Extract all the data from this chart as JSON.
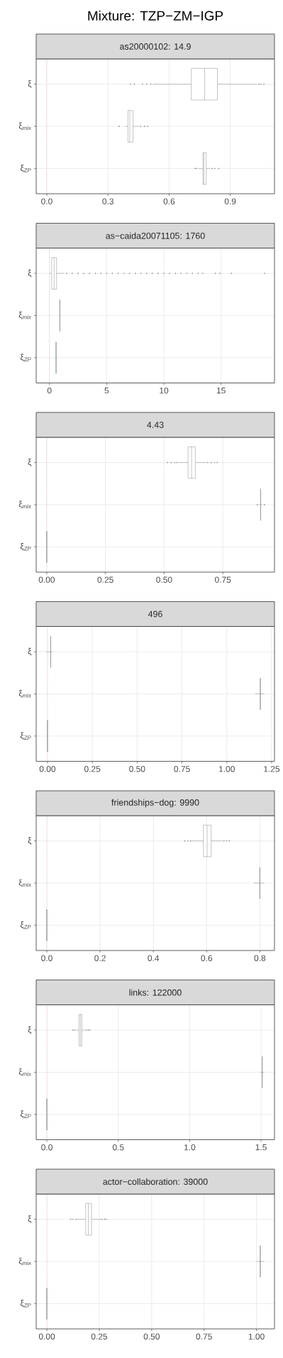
{
  "chart_data": [
    {
      "type": "box",
      "title": "Mixture: TZP−ZM−IGP",
      "subtitle": "as20000102: 14.9",
      "orientation": "horizontal",
      "categories": [
        "ξ",
        "ξ$_{mix}$",
        "ξ$_{ZP}$"
      ],
      "series": [
        {
          "color": "#8a8a8a",
          "boxes": [
            {
              "low": 0.52,
              "q1": 0.709,
              "median": 0.774,
              "q3": 0.837,
              "high": 1.03,
              "outliers": [
                0.41,
                0.43,
                0.47,
                0.49,
                0.51,
                1.04,
                1.05,
                1.065
              ]
            },
            {
              "low": 0.385,
              "q1": 0.398,
              "median": 0.407,
              "q3": 0.423,
              "high": 0.45,
              "outliers": [
                0.355,
                0.46,
                0.48,
                0.495
              ]
            },
            {
              "low": 0.745,
              "q1": 0.766,
              "median": 0.771,
              "q3": 0.782,
              "high": 0.8,
              "outliers": [
                0.727,
                0.735,
                0.81,
                0.825,
                0.843
              ]
            }
          ]
        }
      ],
      "xlim": [
        -0.052,
        1.117
      ],
      "xticks": [
        {
          "value": 0,
          "label": "0.0"
        },
        {
          "value": 0.3,
          "label": "0.3"
        },
        {
          "value": 0.6,
          "label": "0.6"
        },
        {
          "value": 0.9,
          "label": "0.9"
        }
      ],
      "grid": true,
      "ref_lines": [
        {
          "axis": "x",
          "value": 0,
          "color": "#e8677a",
          "line_style": "dotted"
        }
      ]
    },
    {
      "type": "box",
      "subtitle": "as−caida20071105: 1760",
      "orientation": "horizontal",
      "categories": [
        "ξ",
        "ξ$_{mix}$",
        "ξ$_{ZP}$"
      ],
      "series": [
        {
          "color": "#8a8a8a",
          "boxes": [
            {
              "low": 0.0,
              "q1": 0.19,
              "median": 0.41,
              "q3": 0.62,
              "high": 1.28,
              "outliers": [
                1.5,
                2,
                2.5,
                3,
                3.5,
                4,
                4.5,
                5,
                5.5,
                6,
                6.5,
                7,
                7.5,
                8,
                8.5,
                9,
                9.5,
                10,
                10.5,
                11,
                11.5,
                12,
                12.5,
                13,
                13.4,
                14.5,
                14.9,
                15.9,
                18.8
              ]
            },
            {
              "low": 0.88,
              "q1": 0.91,
              "median": 0.91,
              "q3": 0.91,
              "high": 0.94
            },
            {
              "low": 0.56,
              "q1": 0.58,
              "median": 0.58,
              "q3": 0.58,
              "high": 0.6
            }
          ]
        }
      ],
      "xlim": [
        -1.16,
        19.67
      ],
      "xticks": [
        0,
        5,
        10,
        15
      ],
      "grid": true,
      "ref_lines": [
        {
          "axis": "x",
          "value": 0,
          "color": "#e8677a",
          "line_style": "dotted"
        }
      ]
    },
    {
      "type": "box",
      "subtitle": "4.43",
      "orientation": "horizontal",
      "categories": [
        "ξ",
        "ξ$_{mix}$",
        "ξ$_{ZP}$"
      ],
      "series": [
        {
          "color": "#8a8a8a",
          "boxes": [
            {
              "low": 0.562,
              "q1": 0.602,
              "median": 0.617,
              "q3": 0.633,
              "high": 0.678,
              "outliers": [
                0.514,
                0.53,
                0.545,
                0.555,
                0.685,
                0.7,
                0.715,
                0.726
              ]
            },
            {
              "low": 0.905,
              "q1": 0.911,
              "median": 0.911,
              "q3": 0.911,
              "high": 0.918,
              "outliers": [
                0.897,
                0.927
              ]
            },
            {
              "low": 0,
              "q1": 0,
              "median": 0,
              "q3": 0,
              "high": 0
            }
          ]
        }
      ],
      "xlim": [
        -0.045,
        0.97
      ],
      "xticks": [
        {
          "value": 0,
          "label": "0.00"
        },
        {
          "value": 0.25,
          "label": "0.25"
        },
        {
          "value": 0.5,
          "label": "0.50"
        },
        {
          "value": 0.75,
          "label": "0.75"
        }
      ],
      "grid": true,
      "ref_lines": [
        {
          "axis": "x",
          "value": 0,
          "color": "#e8677a",
          "line_style": "dotted"
        }
      ]
    },
    {
      "type": "box",
      "subtitle": "496",
      "orientation": "horizontal",
      "categories": [
        "ξ",
        "ξ$_{mix}$",
        "ξ$_{ZP}$"
      ],
      "series": [
        {
          "color": "#8a8a8a",
          "boxes": [
            {
              "low": -0.007,
              "q1": 0.018,
              "median": 0.018,
              "q3": 0.018,
              "high": 0.026
            },
            {
              "low": 1.158,
              "q1": 1.187,
              "median": 1.187,
              "q3": 1.187,
              "high": 1.21
            },
            {
              "low": 0,
              "q1": 0,
              "median": 0,
              "q3": 0,
              "high": 0
            }
          ]
        }
      ],
      "xlim": [
        -0.063,
        1.266
      ],
      "xticks": [
        {
          "value": 0,
          "label": "0.00"
        },
        {
          "value": 0.25,
          "label": "0.25"
        },
        {
          "value": 0.5,
          "label": "0.50"
        },
        {
          "value": 0.75,
          "label": "0.75"
        },
        {
          "value": 1,
          "label": "1.00"
        },
        {
          "value": 1.25,
          "label": "1.25"
        }
      ],
      "grid": true,
      "ref_lines": [
        {
          "axis": "x",
          "value": 0,
          "color": "#e8677a",
          "line_style": "dotted"
        }
      ]
    },
    {
      "type": "box",
      "subtitle": "friendships−dog: 9990",
      "orientation": "horizontal",
      "categories": [
        "ξ",
        "ξ$_{mix}$",
        "ξ$_{ZP}$"
      ],
      "series": [
        {
          "color": "#8a8a8a",
          "boxes": [
            {
              "low": 0.544,
              "q1": 0.588,
              "median": 0.602,
              "q3": 0.617,
              "high": 0.66,
              "outliers": [
                0.518,
                0.53,
                0.54,
                0.665,
                0.675,
                0.685
              ]
            },
            {
              "low": 0.777,
              "q1": 0.8,
              "median": 0.8,
              "q3": 0.8,
              "high": 0.817
            },
            {
              "low": 0,
              "q1": 0,
              "median": 0,
              "q3": 0,
              "high": 0
            }
          ]
        }
      ],
      "xlim": [
        -0.04,
        0.855
      ],
      "xticks": [
        {
          "value": 0,
          "label": "0.0"
        },
        {
          "value": 0.2,
          "label": "0.2"
        },
        {
          "value": 0.4,
          "label": "0.4"
        },
        {
          "value": 0.6,
          "label": "0.6"
        },
        {
          "value": 0.8,
          "label": "0.8"
        }
      ],
      "grid": true,
      "ref_lines": [
        {
          "axis": "x",
          "value": 0,
          "color": "#e8677a",
          "line_style": "dotted"
        }
      ]
    },
    {
      "type": "box",
      "subtitle": "links: 122000",
      "orientation": "horizontal",
      "categories": [
        "ξ",
        "ξ$_{mix}$",
        "ξ$_{ZP}$"
      ],
      "series": [
        {
          "color": "#8a8a8a",
          "boxes": [
            {
              "low": 0.205,
              "q1": 0.225,
              "median": 0.235,
              "q3": 0.245,
              "high": 0.265,
              "outliers": [
                0.182,
                0.195,
                0.275,
                0.29,
                0.3
              ]
            },
            {
              "low": 1.495,
              "q1": 1.508,
              "median": 1.508,
              "q3": 1.508,
              "high": 1.523
            },
            {
              "low": 0,
              "q1": 0,
              "median": 0,
              "q3": 0,
              "high": 0
            }
          ]
        }
      ],
      "xlim": [
        -0.075,
        1.594
      ],
      "xticks": [
        {
          "value": 0,
          "label": "0.0"
        },
        {
          "value": 0.5,
          "label": "0.5"
        },
        {
          "value": 1,
          "label": "1.0"
        },
        {
          "value": 1.5,
          "label": "1.5"
        }
      ],
      "grid": true,
      "ref_lines": [
        {
          "axis": "x",
          "value": 0,
          "color": "#e8677a",
          "line_style": "dotted"
        }
      ]
    },
    {
      "type": "box",
      "subtitle": "actor−collaboration: 39000",
      "orientation": "horizontal",
      "categories": [
        "ξ",
        "ξ$_{mix}$",
        "ξ$_{ZP}$"
      ],
      "series": [
        {
          "color": "#8a8a8a",
          "boxes": [
            {
              "low": 0.144,
              "q1": 0.185,
              "median": 0.198,
              "q3": 0.213,
              "high": 0.257,
              "outliers": [
                0.114,
                0.125,
                0.14,
                0.262,
                0.275,
                0.283
              ]
            },
            {
              "low": 1.0,
              "q1": 1.018,
              "median": 1.018,
              "q3": 1.018,
              "high": 1.037
            },
            {
              "low": 0,
              "q1": 0,
              "median": 0,
              "q3": 0,
              "high": 0
            }
          ]
        }
      ],
      "xlim": [
        -0.051,
        1.086
      ],
      "xticks": [
        {
          "value": 0,
          "label": "0.00"
        },
        {
          "value": 0.25,
          "label": "0.25"
        },
        {
          "value": 0.5,
          "label": "0.50"
        },
        {
          "value": 0.75,
          "label": "0.75"
        },
        {
          "value": 1,
          "label": "1.00"
        }
      ],
      "grid": true,
      "ref_lines": [
        {
          "axis": "x",
          "value": 0,
          "color": "#e8677a",
          "line_style": "dotted"
        }
      ]
    }
  ]
}
